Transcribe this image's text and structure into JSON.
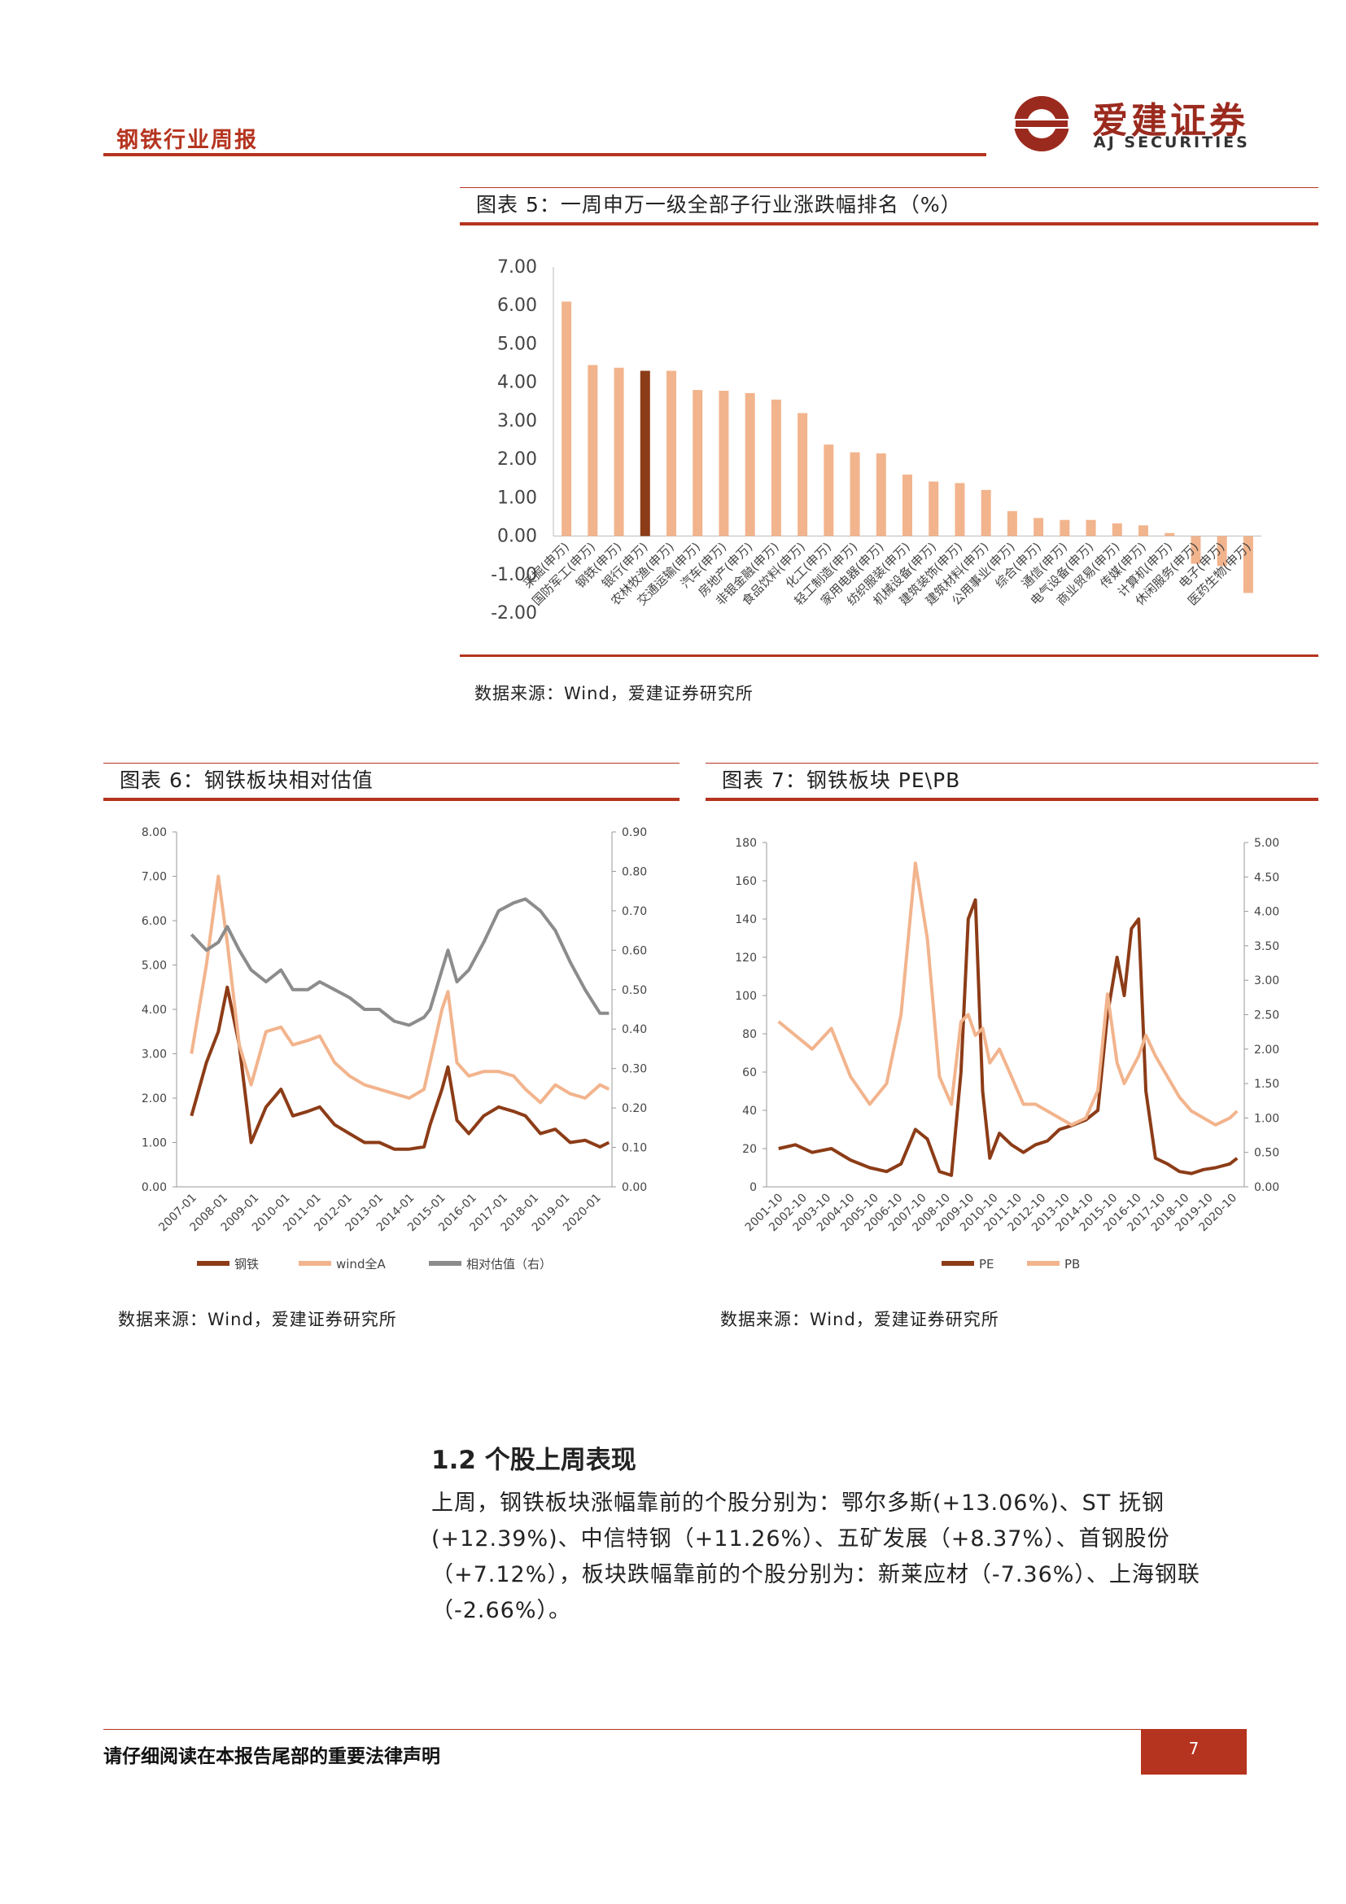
{
  "header": {
    "title": "钢铁行业周报"
  },
  "logo": {
    "cn": "爱建证券",
    "en": "AJ SECURITIES"
  },
  "fig5": {
    "caption": "图表 5：一周申万一级全部子行业涨跌幅排名（%）",
    "source": "数据来源：Wind，爱建证券研究所"
  },
  "fig6": {
    "caption": "图表 6：钢铁板块相对估值",
    "source": "数据来源：Wind，爱建证券研究所"
  },
  "fig7": {
    "caption": "图表 7：钢铁板块 PE\\PB",
    "source": "数据来源：Wind，爱建证券研究所"
  },
  "section": {
    "title": "1.2 个股上周表现",
    "paragraph": "上周，钢铁板块涨幅靠前的个股分别为：鄂尔多斯(+13.06%)、ST 抚钢(+12.39%)、中信特钢（+11.26%）、五矿发展（+8.37%）、首钢股份（+7.12%），板块跌幅靠前的个股分别为：新莱应材（-7.36%）、上海钢联（-2.66%）。"
  },
  "footer": {
    "notice": "请仔细阅读在本报告尾部的重要法律声明",
    "page": "7"
  },
  "colors": {
    "accent": "#b5341f",
    "bar": "#f2b48d",
    "bar_highlight": "#8c3c17",
    "steel": "#8c3c17",
    "winda": "#f2b48d",
    "relative": "#8c8c8c"
  },
  "chart_data": [
    {
      "type": "bar",
      "categories": [
        "采掘(申万)",
        "国防军工(申万)",
        "钢铁(申万)",
        "银行(申万)",
        "农林牧渔(申万)",
        "交通运输(申万)",
        "汽车(申万)",
        "房地产(申万)",
        "非银金融(申万)",
        "食品饮料(申万)",
        "化工(申万)",
        "轻工制造(申万)",
        "家用电器(申万)",
        "纺织服装(申万)",
        "机械设备(申万)",
        "建筑装饰(申万)",
        "建筑材料(申万)",
        "公用事业(申万)",
        "综合(申万)",
        "通信(申万)",
        "电气设备(申万)",
        "商业贸易(申万)",
        "传媒(申万)",
        "计算机(申万)",
        "休闲服务(申万)",
        "电子(申万)",
        "医药生物(申万)"
      ],
      "values": [
        6.1,
        4.45,
        4.38,
        4.3,
        4.3,
        3.8,
        3.78,
        3.72,
        3.55,
        3.2,
        2.38,
        2.18,
        2.15,
        1.6,
        1.42,
        1.38,
        1.2,
        0.65,
        0.47,
        0.42,
        0.42,
        0.33,
        0.28,
        0.08,
        -0.72,
        -0.78,
        -1.48
      ],
      "highlight_index": 3,
      "ylim": [
        -2,
        7
      ],
      "yticks": [
        "7.00",
        "6.00",
        "5.00",
        "4.00",
        "3.00",
        "2.00",
        "1.00",
        "0.00",
        "-1.00",
        "-2.00"
      ]
    },
    {
      "type": "line",
      "x_ticks": [
        "2007-01",
        "2008-01",
        "2009-01",
        "2010-01",
        "2011-01",
        "2012-01",
        "2013-01",
        "2014-01",
        "2015-01",
        "2016-01",
        "2017-01",
        "2018-01",
        "2019-01",
        "2020-01"
      ],
      "y_left_ticks": [
        "8.00",
        "7.00",
        "6.00",
        "5.00",
        "4.00",
        "3.00",
        "2.00",
        "1.00",
        "0.00"
      ],
      "y_right_ticks": [
        "0.90",
        "0.80",
        "0.70",
        "0.60",
        "0.50",
        "0.40",
        "0.30",
        "0.20",
        "0.10",
        "0.00"
      ],
      "ylim_left": [
        0,
        8
      ],
      "ylim_right": [
        0,
        0.9
      ],
      "series": [
        {
          "name": "钢铁",
          "axis": "left",
          "x": [
            2007.0,
            2007.5,
            2007.9,
            2008.2,
            2008.6,
            2009.0,
            2009.5,
            2010.0,
            2010.4,
            2010.9,
            2011.3,
            2011.8,
            2012.3,
            2012.8,
            2013.3,
            2013.8,
            2014.3,
            2014.8,
            2015.0,
            2015.4,
            2015.6,
            2015.9,
            2016.3,
            2016.8,
            2017.3,
            2017.8,
            2018.2,
            2018.7,
            2019.2,
            2019.7,
            2020.2,
            2020.7,
            2021.0
          ],
          "values": [
            1.6,
            2.8,
            3.5,
            4.5,
            3.2,
            1.0,
            1.8,
            2.2,
            1.6,
            1.7,
            1.8,
            1.4,
            1.2,
            1.0,
            1.0,
            0.85,
            0.85,
            0.9,
            1.4,
            2.2,
            2.7,
            1.5,
            1.2,
            1.6,
            1.8,
            1.7,
            1.6,
            1.2,
            1.3,
            1.0,
            1.05,
            0.9,
            1.0
          ]
        },
        {
          "name": "wind全A",
          "axis": "left",
          "x": [
            2007.0,
            2007.5,
            2007.9,
            2008.2,
            2008.6,
            2009.0,
            2009.5,
            2010.0,
            2010.4,
            2010.9,
            2011.3,
            2011.8,
            2012.3,
            2012.8,
            2013.3,
            2013.8,
            2014.3,
            2014.8,
            2015.0,
            2015.4,
            2015.6,
            2015.9,
            2016.3,
            2016.8,
            2017.3,
            2017.8,
            2018.2,
            2018.7,
            2019.2,
            2019.7,
            2020.2,
            2020.7,
            2021.0
          ],
          "values": [
            3.0,
            5.0,
            7.0,
            5.5,
            3.2,
            2.3,
            3.5,
            3.6,
            3.2,
            3.3,
            3.4,
            2.8,
            2.5,
            2.3,
            2.2,
            2.1,
            2.0,
            2.2,
            2.8,
            4.0,
            4.4,
            2.8,
            2.5,
            2.6,
            2.6,
            2.5,
            2.2,
            1.9,
            2.3,
            2.1,
            2.0,
            2.3,
            2.2
          ]
        },
        {
          "name": "相对估值（右）",
          "axis": "right",
          "x": [
            2007.0,
            2007.5,
            2007.9,
            2008.2,
            2008.6,
            2009.0,
            2009.5,
            2010.0,
            2010.4,
            2010.9,
            2011.3,
            2011.8,
            2012.3,
            2012.8,
            2013.3,
            2013.8,
            2014.3,
            2014.8,
            2015.0,
            2015.4,
            2015.6,
            2015.9,
            2016.3,
            2016.8,
            2017.3,
            2017.8,
            2018.2,
            2018.7,
            2019.2,
            2019.7,
            2020.2,
            2020.7,
            2021.0
          ],
          "values": [
            0.64,
            0.6,
            0.62,
            0.66,
            0.6,
            0.55,
            0.52,
            0.55,
            0.5,
            0.5,
            0.52,
            0.5,
            0.48,
            0.45,
            0.45,
            0.42,
            0.41,
            0.43,
            0.45,
            0.55,
            0.6,
            0.52,
            0.55,
            0.62,
            0.7,
            0.72,
            0.73,
            0.7,
            0.65,
            0.57,
            0.5,
            0.44,
            0.44
          ]
        }
      ]
    },
    {
      "type": "line",
      "x_ticks": [
        "2001-10",
        "2002-10",
        "2003-10",
        "2004-10",
        "2005-10",
        "2006-10",
        "2007-10",
        "2008-10",
        "2009-10",
        "2010-10",
        "2011-10",
        "2012-10",
        "2013-10",
        "2014-10",
        "2015-10",
        "2016-10",
        "2017-10",
        "2018-10",
        "2019-10",
        "2020-10"
      ],
      "y_left_ticks": [
        "180",
        "160",
        "140",
        "120",
        "100",
        "80",
        "60",
        "40",
        "20",
        "0"
      ],
      "y_right_ticks": [
        "5.00",
        "4.50",
        "4.00",
        "3.50",
        "3.00",
        "2.50",
        "2.00",
        "1.50",
        "1.00",
        "0.50",
        "0.00"
      ],
      "ylim_left": [
        0,
        180
      ],
      "ylim_right": [
        0,
        5
      ],
      "series": [
        {
          "name": "PE",
          "axis": "left",
          "x": [
            2001.8,
            2002.5,
            2003.2,
            2004.0,
            2004.8,
            2005.6,
            2006.3,
            2006.9,
            2007.5,
            2008.0,
            2008.5,
            2009.0,
            2009.4,
            2009.7,
            2010.0,
            2010.3,
            2010.6,
            2011.0,
            2011.5,
            2012.0,
            2012.5,
            2013.0,
            2013.5,
            2014.0,
            2014.6,
            2015.1,
            2015.5,
            2015.9,
            2016.2,
            2016.5,
            2016.8,
            2017.1,
            2017.5,
            2018.0,
            2018.5,
            2019.0,
            2019.5,
            2020.0,
            2020.6,
            2020.9
          ],
          "values": [
            20,
            22,
            18,
            20,
            14,
            10,
            8,
            12,
            30,
            25,
            8,
            6,
            60,
            140,
            150,
            50,
            15,
            28,
            22,
            18,
            22,
            24,
            30,
            32,
            35,
            40,
            90,
            120,
            100,
            135,
            140,
            50,
            15,
            12,
            8,
            7,
            9,
            10,
            12,
            15
          ]
        },
        {
          "name": "PB",
          "axis": "right",
          "x": [
            2001.8,
            2002.5,
            2003.2,
            2004.0,
            2004.8,
            2005.6,
            2006.3,
            2006.9,
            2007.5,
            2008.0,
            2008.5,
            2009.0,
            2009.4,
            2009.7,
            2010.0,
            2010.3,
            2010.6,
            2011.0,
            2011.5,
            2012.0,
            2012.5,
            2013.0,
            2013.5,
            2014.0,
            2014.6,
            2015.1,
            2015.5,
            2015.9,
            2016.2,
            2016.5,
            2016.8,
            2017.1,
            2017.5,
            2018.0,
            2018.5,
            2019.0,
            2019.5,
            2020.0,
            2020.6,
            2020.9
          ],
          "values": [
            2.4,
            2.2,
            2.0,
            2.3,
            1.6,
            1.2,
            1.5,
            2.5,
            4.7,
            3.6,
            1.6,
            1.2,
            2.4,
            2.5,
            2.2,
            2.3,
            1.8,
            2.0,
            1.6,
            1.2,
            1.2,
            1.1,
            1.0,
            0.9,
            1.0,
            1.4,
            2.8,
            1.8,
            1.5,
            1.7,
            1.9,
            2.2,
            1.9,
            1.6,
            1.3,
            1.1,
            1.0,
            0.9,
            1.0,
            1.1
          ]
        }
      ]
    }
  ]
}
